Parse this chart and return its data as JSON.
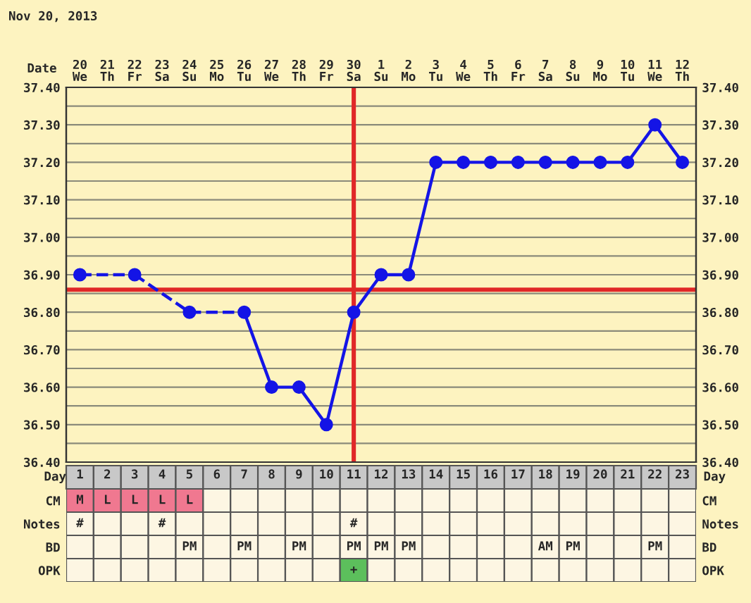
{
  "chart_data": [
    {
      "type": "line",
      "title": "Nov 20, 2013",
      "xlabel": "Date",
      "categories": [
        "20\nWe",
        "21\nTh",
        "22\nFr",
        "23\nSa",
        "24\nSu",
        "25\nMo",
        "26\nTu",
        "27\nWe",
        "28\nTh",
        "29\nFr",
        "30\nSa",
        "1\nSu",
        "2\nMo",
        "3\nTu",
        "4\nWe",
        "5\nTh",
        "6\nFr",
        "7\nSa",
        "8\nSu",
        "9\nMo",
        "10\nTu",
        "11\nWe",
        "12\nTh"
      ],
      "series": [
        {
          "color": "#1414e6",
          "values": [
            36.9,
            null,
            36.9,
            null,
            36.8,
            null,
            36.8,
            36.6,
            36.6,
            36.5,
            36.8,
            36.9,
            36.9,
            37.2,
            37.2,
            37.2,
            37.2,
            37.2,
            37.2,
            37.2,
            37.2,
            37.3,
            37.2
          ]
        }
      ],
      "marker": "circle",
      "line_style": "solid",
      "grid": true,
      "ylim": [
        36.4,
        37.4
      ],
      "yticks": [
        {
          "value": 36.4,
          "label": "36.40"
        },
        {
          "value": 36.45,
          "label": null
        },
        {
          "value": 36.5,
          "label": "36.50"
        },
        {
          "value": 36.55,
          "label": null
        },
        {
          "value": 36.6,
          "label": "36.60"
        },
        {
          "value": 36.65,
          "label": null
        },
        {
          "value": 36.7,
          "label": "36.70"
        },
        {
          "value": 36.75,
          "label": null
        },
        {
          "value": 36.8,
          "label": "36.80"
        },
        {
          "value": 36.85,
          "label": null
        },
        {
          "value": 36.9,
          "label": "36.90"
        },
        {
          "value": 36.95,
          "label": null
        },
        {
          "value": 37.0,
          "label": "37.00"
        },
        {
          "value": 37.05,
          "label": null
        },
        {
          "value": 37.1,
          "label": "37.10"
        },
        {
          "value": 37.15,
          "label": null
        },
        {
          "value": 37.2,
          "label": "37.20"
        },
        {
          "value": 37.25,
          "label": null
        },
        {
          "value": 37.3,
          "label": "37.30"
        },
        {
          "value": 37.35,
          "label": null
        },
        {
          "value": 37.4,
          "label": "37.40"
        }
      ],
      "y2lim": [
        36.4,
        37.4
      ],
      "y2ticks": [
        {
          "value": 36.4,
          "label": "36.40"
        },
        {
          "value": 36.5,
          "label": "36.50"
        },
        {
          "value": 36.6,
          "label": "36.60"
        },
        {
          "value": 36.7,
          "label": "36.70"
        },
        {
          "value": 36.8,
          "label": "36.80"
        },
        {
          "value": 36.9,
          "label": "36.90"
        },
        {
          "value": 37.0,
          "label": "37.00"
        },
        {
          "value": 37.1,
          "label": "37.10"
        },
        {
          "value": 37.2,
          "label": "37.20"
        },
        {
          "value": 37.3,
          "label": "37.30"
        },
        {
          "value": 37.4,
          "label": "37.40"
        }
      ],
      "ref_lines": [
        {
          "axis": "y",
          "value": 36.86,
          "color": "#e02828"
        },
        {
          "axis": "x",
          "value": "30\nSa",
          "color": "#e02828"
        }
      ]
    },
    {
      "type": "heatmap",
      "xlabel": "Day",
      "categories": [
        "1",
        "2",
        "3",
        "4",
        "5",
        "6",
        "7",
        "8",
        "9",
        "10",
        "11",
        "12",
        "13",
        "14",
        "15",
        "16",
        "17",
        "18",
        "19",
        "20",
        "21",
        "22",
        "23"
      ],
      "y_categories": [
        "CM",
        "Notes",
        "BD",
        "OPK"
      ],
      "y2_categories": [
        "CM",
        "Notes",
        "BD",
        "OPK"
      ],
      "cells": [
        [
          null,
          null,
          null,
          null,
          null,
          null,
          null,
          null,
          null,
          null,
          null,
          null,
          null,
          null,
          null,
          null,
          null,
          null,
          null,
          null,
          null,
          null,
          null
        ],
        [
          null,
          null,
          null,
          null,
          null,
          null,
          null,
          null,
          null,
          null,
          null,
          null,
          null,
          null,
          null,
          null,
          null,
          null,
          null,
          null,
          null,
          null,
          null
        ],
        [
          null,
          null,
          null,
          null,
          null,
          null,
          null,
          null,
          null,
          null,
          null,
          null,
          null,
          null,
          null,
          null,
          null,
          null,
          null,
          null,
          null,
          null,
          null
        ],
        [
          null,
          null,
          null,
          null,
          null,
          null,
          null,
          null,
          null,
          null,
          null,
          null,
          null,
          null,
          null,
          null,
          null,
          null,
          null,
          null,
          null,
          null,
          null
        ]
      ],
      "cell_labels": [
        [
          "M",
          "L",
          "L",
          "L",
          "L",
          null,
          null,
          null,
          null,
          null,
          null,
          null,
          null,
          null,
          null,
          null,
          null,
          null,
          null,
          null,
          null,
          null,
          null
        ],
        [
          "#",
          null,
          null,
          "#",
          null,
          null,
          null,
          null,
          null,
          null,
          "#",
          null,
          null,
          null,
          null,
          null,
          null,
          null,
          null,
          null,
          null,
          null,
          null
        ],
        [
          null,
          null,
          null,
          null,
          "PM",
          null,
          "PM",
          null,
          "PM",
          null,
          "PM",
          "PM",
          "PM",
          null,
          null,
          null,
          null,
          "AM",
          "PM",
          null,
          null,
          "PM",
          null
        ],
        [
          null,
          null,
          null,
          null,
          null,
          null,
          null,
          null,
          null,
          null,
          "+",
          null,
          null,
          null,
          null,
          null,
          null,
          null,
          null,
          null,
          null,
          null,
          null
        ]
      ],
      "colors": [
        [
          "#f07890",
          "#f07890",
          "#f07890",
          "#f07890",
          "#f07890",
          null,
          null,
          null,
          null,
          null,
          null,
          null,
          null,
          null,
          null,
          null,
          null,
          null,
          null,
          null,
          null,
          null,
          null
        ],
        [
          null,
          null,
          null,
          null,
          null,
          null,
          null,
          null,
          null,
          null,
          null,
          null,
          null,
          null,
          null,
          null,
          null,
          null,
          null,
          null,
          null,
          null,
          null
        ],
        [
          null,
          null,
          null,
          null,
          null,
          null,
          null,
          null,
          null,
          null,
          null,
          null,
          null,
          null,
          null,
          null,
          null,
          null,
          null,
          null,
          null,
          null,
          null
        ],
        [
          null,
          null,
          null,
          null,
          null,
          null,
          null,
          null,
          null,
          null,
          "#5cbf5c",
          null,
          null,
          null,
          null,
          null,
          null,
          null,
          null,
          null,
          null,
          null,
          null
        ]
      ]
    }
  ]
}
